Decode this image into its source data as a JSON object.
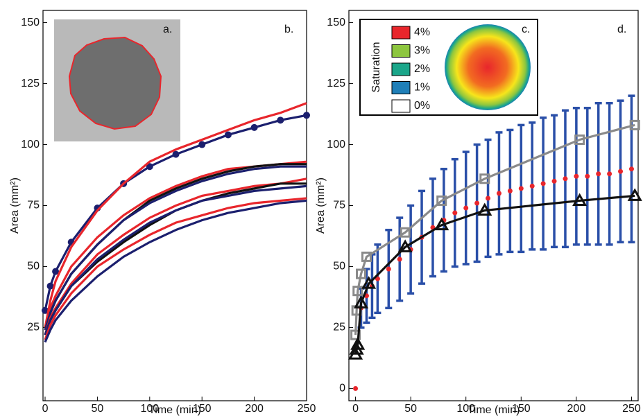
{
  "chart_data": [
    {
      "type": "line",
      "panel_labels": [
        "a.",
        "b."
      ],
      "xlabel": "Time (min)",
      "ylabel": "Area (mm²)",
      "xlim": [
        -2,
        250
      ],
      "ylim": [
        -5,
        155
      ],
      "xticks": [
        0,
        50,
        100,
        150,
        200,
        250
      ],
      "yticks": [
        25,
        50,
        75,
        100,
        125,
        150
      ],
      "x": [
        0,
        5,
        10,
        25,
        50,
        75,
        100,
        125,
        150,
        175,
        200,
        225,
        250
      ],
      "series": [
        {
          "color": "#1b1f6e",
          "marker": "circle",
          "values": [
            32,
            42,
            48,
            60,
            74,
            84,
            91,
            96,
            100,
            104,
            107,
            110,
            112
          ]
        },
        {
          "color": "#e8262c",
          "values": [
            25,
            36,
            44,
            58,
            73,
            84,
            93,
            98,
            102,
            106,
            110,
            113,
            117
          ]
        },
        {
          "color": "#e8262c",
          "values": [
            25,
            33,
            38,
            50,
            62,
            71,
            78,
            83,
            87,
            90,
            91,
            92,
            93
          ]
        },
        {
          "color": "#111111",
          "values": [
            24,
            31,
            36,
            47,
            59,
            69,
            77,
            82,
            86,
            89,
            91,
            92,
            92
          ]
        },
        {
          "color": "#1b1f6e",
          "values": [
            24,
            31,
            36,
            47,
            59,
            69,
            76,
            81,
            85,
            88,
            90,
            91,
            91
          ]
        },
        {
          "color": "#e8262c",
          "values": [
            22,
            29,
            33,
            43,
            55,
            63,
            70,
            75,
            79,
            81,
            83,
            84,
            86
          ]
        },
        {
          "color": "#111111",
          "values": [
            22,
            28,
            32,
            42,
            52,
            60,
            67,
            73,
            77,
            80,
            82,
            84,
            84
          ]
        },
        {
          "color": "#1b1f6e",
          "values": [
            22,
            28,
            32,
            42,
            53,
            61,
            68,
            73,
            77,
            79,
            81,
            82,
            83
          ]
        },
        {
          "color": "#e8262c",
          "values": [
            20,
            26,
            30,
            39,
            50,
            57,
            63,
            68,
            71,
            74,
            76,
            77,
            78
          ]
        },
        {
          "color": "#1b1f6e",
          "values": [
            19,
            24,
            28,
            36,
            46,
            54,
            60,
            65,
            69,
            72,
            74,
            76,
            77
          ]
        }
      ]
    },
    {
      "type": "line",
      "panel_labels": [
        "c.",
        "d."
      ],
      "xlabel": "Time (min)",
      "ylabel": "Area (mm²)",
      "xlim": [
        -6,
        256
      ],
      "ylim": [
        -5,
        155
      ],
      "xticks": [
        0,
        50,
        100,
        150,
        200,
        250
      ],
      "yticks": [
        0,
        25,
        50,
        75,
        100,
        125,
        150
      ],
      "colorbar": {
        "title": "Saturation",
        "labels": [
          "4%",
          "3%",
          "2%",
          "1%",
          "0%"
        ],
        "colors": [
          "#e8262c",
          "#8dc63f",
          "#1aa68a",
          "#1f7fb8",
          "#ffffff"
        ]
      },
      "error_color": "#2a4fa8",
      "series": [
        {
          "color": "#e8262c",
          "marker": "circle",
          "line": false,
          "x": [
            0,
            5,
            10,
            15,
            20,
            30,
            40,
            50,
            60,
            70,
            80,
            90,
            100,
            110,
            120,
            130,
            140,
            150,
            160,
            170,
            180,
            190,
            200,
            210,
            220,
            230,
            240,
            250
          ],
          "values": [
            0,
            33,
            38,
            42,
            45,
            49,
            53,
            57,
            62,
            66,
            69,
            72,
            74,
            76,
            78,
            80,
            81,
            82,
            83,
            84,
            85,
            86,
            87,
            87,
            88,
            88,
            89,
            90
          ],
          "errors": [
            null,
            8,
            11,
            13,
            14,
            16,
            17,
            18,
            19,
            20,
            21,
            22,
            23,
            24,
            24,
            25,
            25,
            26,
            26,
            27,
            27,
            28,
            28,
            28,
            29,
            29,
            29,
            30
          ]
        },
        {
          "color": "#8a8a8a",
          "marker": "square",
          "x": [
            0,
            1,
            2,
            5,
            10,
            45,
            78,
            117,
            203,
            253
          ],
          "values": [
            22,
            32,
            40,
            47,
            54,
            64,
            77,
            86,
            102,
            108
          ]
        },
        {
          "color": "#111111",
          "marker": "triangle",
          "x": [
            0,
            1,
            2,
            5,
            12,
            45,
            78,
            117,
            203,
            253
          ],
          "values": [
            14,
            16,
            18,
            35,
            43,
            58,
            67,
            73,
            77,
            79
          ]
        }
      ]
    }
  ]
}
